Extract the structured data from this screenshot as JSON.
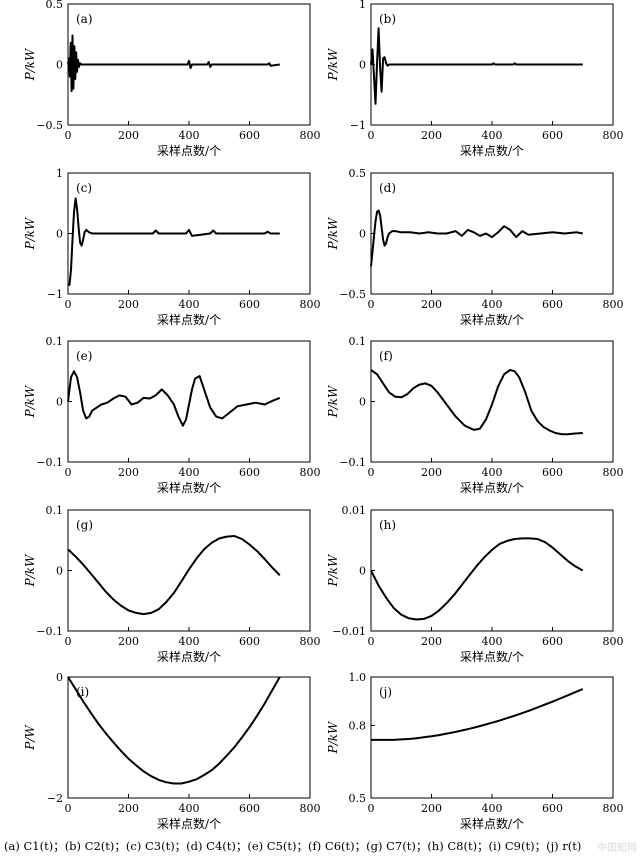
{
  "caption": "(a) C1(t)；(b) C2(t)；(c) C3(t)；(d) C4(t)；(e) C5(t)；(f) C6(t)；(g) C7(t)；(h) C8(t)；(i) C9(t)；(j) r(t)",
  "watermark": "中国知网",
  "chart_data": [
    {
      "type": "line",
      "label": "(a)",
      "xlabel": "采样点数/个",
      "ylabel": "P/kW",
      "xlim": [
        0,
        800
      ],
      "ylim": [
        -0.5,
        0.5
      ],
      "xticks": [
        0,
        200,
        400,
        600,
        800
      ],
      "yticks": [
        -0.5,
        0,
        0.5
      ],
      "ytick_labels": [
        "−0.5",
        "0",
        "0.5"
      ],
      "series": [
        {
          "x": [
            0,
            3,
            6,
            9,
            12,
            15,
            18,
            21,
            24,
            27,
            30,
            33,
            36,
            40,
            44,
            60,
            100,
            200,
            395,
            400,
            405,
            410,
            460,
            465,
            470,
            475,
            660,
            665,
            670,
            700
          ],
          "y": [
            0,
            0.05,
            -0.1,
            0.18,
            -0.22,
            0.24,
            -0.2,
            0.15,
            -0.12,
            0.1,
            -0.06,
            0.04,
            -0.02,
            0.01,
            0,
            0,
            0,
            0,
            0,
            0.03,
            -0.03,
            0,
            0,
            0.02,
            -0.02,
            0,
            0,
            0.01,
            -0.01,
            0
          ]
        }
      ]
    },
    {
      "type": "line",
      "label": "(b)",
      "xlabel": "采样点数/个",
      "ylabel": "P/kW",
      "xlim": [
        0,
        800
      ],
      "ylim": [
        -1,
        1
      ],
      "xticks": [
        0,
        200,
        400,
        600,
        800
      ],
      "yticks": [
        -1,
        0,
        1
      ],
      "ytick_labels": [
        "−1",
        "0",
        "1"
      ],
      "series": [
        {
          "x": [
            0,
            5,
            10,
            15,
            20,
            25,
            30,
            35,
            40,
            45,
            50,
            55,
            60,
            70,
            100,
            400,
            405,
            410,
            470,
            475,
            480,
            700
          ],
          "y": [
            0,
            0.25,
            -0.2,
            -0.65,
            0.05,
            0.6,
            -0.05,
            -0.45,
            0.1,
            0.12,
            0.02,
            -0.02,
            0,
            0,
            0,
            0,
            0.02,
            0,
            0,
            0.02,
            0,
            0
          ]
        }
      ]
    },
    {
      "type": "line",
      "label": "(c)",
      "xlabel": "采样点数/个",
      "ylabel": "P/kW",
      "xlim": [
        0,
        800
      ],
      "ylim": [
        -1,
        1
      ],
      "xticks": [
        0,
        200,
        400,
        600,
        800
      ],
      "yticks": [
        -1,
        0,
        1
      ],
      "ytick_labels": [
        "−1",
        "0",
        "1"
      ],
      "series": [
        {
          "x": [
            0,
            5,
            10,
            15,
            20,
            25,
            30,
            35,
            40,
            45,
            50,
            55,
            60,
            70,
            80,
            100,
            200,
            280,
            290,
            300,
            390,
            400,
            410,
            470,
            480,
            490,
            650,
            660,
            670,
            700
          ],
          "y": [
            -0.85,
            -0.85,
            -0.6,
            -0.1,
            0.35,
            0.58,
            0.4,
            0.1,
            -0.15,
            -0.2,
            -0.1,
            0.02,
            0.06,
            0.02,
            0,
            0,
            0,
            0,
            0.05,
            0,
            0,
            0.06,
            -0.04,
            0,
            0.05,
            0,
            0,
            0.03,
            0,
            0
          ]
        }
      ]
    },
    {
      "type": "line",
      "label": "(d)",
      "xlabel": "采样点数/个",
      "ylabel": "P/kW",
      "xlim": [
        0,
        800
      ],
      "ylim": [
        -0.5,
        0.5
      ],
      "xticks": [
        0,
        200,
        400,
        600,
        800
      ],
      "yticks": [
        -0.5,
        0,
        0.5
      ],
      "ytick_labels": [
        "−0.5",
        "0",
        "0.5"
      ],
      "series": [
        {
          "x": [
            0,
            5,
            10,
            15,
            20,
            25,
            30,
            35,
            40,
            45,
            50,
            55,
            60,
            70,
            80,
            100,
            130,
            160,
            190,
            220,
            250,
            280,
            300,
            320,
            340,
            360,
            380,
            400,
            420,
            440,
            460,
            480,
            500,
            520,
            560,
            600,
            640,
            680,
            700
          ],
          "y": [
            -0.27,
            -0.15,
            -0.02,
            0.1,
            0.18,
            0.19,
            0.15,
            0.05,
            -0.05,
            -0.1,
            -0.08,
            -0.03,
            0,
            0.02,
            0.02,
            0.01,
            0.01,
            0,
            0.01,
            0,
            0,
            0.02,
            -0.02,
            0.03,
            0.01,
            -0.02,
            0,
            -0.03,
            0.01,
            0.06,
            0.03,
            -0.03,
            0.02,
            -0.01,
            0,
            0.01,
            0,
            0.01,
            0
          ]
        }
      ]
    },
    {
      "type": "line",
      "label": "(e)",
      "xlabel": "采样点数/个",
      "ylabel": "P/kW",
      "xlim": [
        0,
        800
      ],
      "ylim": [
        -0.1,
        0.1
      ],
      "xticks": [
        0,
        200,
        400,
        600,
        800
      ],
      "yticks": [
        -0.1,
        0,
        0.1
      ],
      "ytick_labels": [
        "−0.1",
        "0",
        "0.1"
      ],
      "series": [
        {
          "x": [
            0,
            10,
            20,
            30,
            40,
            50,
            60,
            70,
            80,
            95,
            110,
            130,
            150,
            170,
            190,
            210,
            230,
            250,
            270,
            290,
            310,
            330,
            350,
            365,
            380,
            390,
            400,
            410,
            420,
            435,
            450,
            470,
            490,
            510,
            530,
            560,
            590,
            620,
            650,
            680,
            700
          ],
          "y": [
            0,
            0.04,
            0.05,
            0.04,
            0.015,
            -0.015,
            -0.028,
            -0.025,
            -0.015,
            -0.01,
            -0.005,
            -0.002,
            0.005,
            0.01,
            0.008,
            -0.005,
            -0.002,
            0.006,
            0.005,
            0.01,
            0.02,
            0.01,
            -0.005,
            -0.025,
            -0.04,
            -0.03,
            -0.005,
            0.02,
            0.038,
            0.042,
            0.02,
            -0.01,
            -0.025,
            -0.028,
            -0.02,
            -0.008,
            -0.005,
            -0.002,
            -0.005,
            0.002,
            0.006
          ]
        }
      ]
    },
    {
      "type": "line",
      "label": "(f)",
      "xlabel": "采样点数/个",
      "ylabel": "P/kW",
      "xlim": [
        0,
        800
      ],
      "ylim": [
        -0.1,
        0.1
      ],
      "xticks": [
        0,
        200,
        400,
        600,
        800
      ],
      "yticks": [
        -0.1,
        0,
        0.1
      ],
      "ytick_labels": [
        "−0.1",
        "0",
        "0.1"
      ],
      "series": [
        {
          "x": [
            0,
            20,
            40,
            60,
            80,
            100,
            120,
            140,
            160,
            180,
            200,
            220,
            250,
            280,
            310,
            340,
            360,
            380,
            400,
            420,
            440,
            460,
            475,
            490,
            510,
            530,
            550,
            570,
            590,
            610,
            630,
            650,
            670,
            700
          ],
          "y": [
            0.052,
            0.045,
            0.03,
            0.015,
            0.008,
            0.007,
            0.012,
            0.022,
            0.028,
            0.03,
            0.026,
            0.015,
            -0.005,
            -0.025,
            -0.04,
            -0.047,
            -0.045,
            -0.03,
            -0.005,
            0.025,
            0.045,
            0.052,
            0.05,
            0.04,
            0.015,
            -0.015,
            -0.032,
            -0.042,
            -0.048,
            -0.052,
            -0.054,
            -0.054,
            -0.053,
            -0.052
          ]
        }
      ]
    },
    {
      "type": "line",
      "label": "(g)",
      "xlabel": "采样点数/个",
      "ylabel": "P/kW",
      "xlim": [
        0,
        800
      ],
      "ylim": [
        -0.1,
        0.1
      ],
      "xticks": [
        0,
        200,
        400,
        600,
        800
      ],
      "yticks": [
        -0.1,
        0,
        0.1
      ],
      "ytick_labels": [
        "−0.1",
        "0",
        "0.1"
      ],
      "series": [
        {
          "x": [
            0,
            25,
            50,
            75,
            100,
            125,
            150,
            175,
            200,
            225,
            250,
            275,
            300,
            325,
            350,
            375,
            400,
            425,
            450,
            475,
            500,
            525,
            550,
            575,
            600,
            625,
            650,
            675,
            700
          ],
          "y": [
            0.035,
            0.023,
            0.01,
            -0.005,
            -0.02,
            -0.035,
            -0.048,
            -0.058,
            -0.066,
            -0.07,
            -0.072,
            -0.07,
            -0.064,
            -0.052,
            -0.037,
            -0.018,
            0.002,
            0.02,
            0.035,
            0.046,
            0.053,
            0.056,
            0.057,
            0.052,
            0.043,
            0.032,
            0.019,
            0.005,
            -0.008
          ]
        }
      ]
    },
    {
      "type": "line",
      "label": "(h)",
      "xlabel": "采样点数/个",
      "ylabel": "P/kW",
      "xlim": [
        0,
        800
      ],
      "ylim": [
        -0.01,
        0.01
      ],
      "xticks": [
        0,
        200,
        400,
        600,
        800
      ],
      "yticks": [
        -0.01,
        0,
        0.01
      ],
      "ytick_labels": [
        "−0.01",
        "0",
        "0.01"
      ],
      "series": [
        {
          "x": [
            0,
            25,
            50,
            75,
            100,
            125,
            150,
            175,
            200,
            225,
            250,
            275,
            300,
            325,
            350,
            375,
            400,
            425,
            450,
            475,
            500,
            525,
            550,
            575,
            600,
            625,
            650,
            675,
            700
          ],
          "y": [
            0,
            -0.0025,
            -0.0045,
            -0.0062,
            -0.0073,
            -0.0079,
            -0.0081,
            -0.008,
            -0.0075,
            -0.0066,
            -0.0054,
            -0.004,
            -0.0024,
            -0.0008,
            0.0008,
            0.0022,
            0.0034,
            0.0044,
            0.0049,
            0.0052,
            0.0053,
            0.0053,
            0.0052,
            0.0047,
            0.0038,
            0.0027,
            0.0016,
            0.0007,
            0
          ]
        }
      ]
    },
    {
      "type": "line",
      "label": "(i)",
      "xlabel": "采样点数/个",
      "ylabel": "P/W",
      "xlim": [
        0,
        800
      ],
      "ylim": [
        -2,
        0
      ],
      "xticks": [
        0,
        200,
        400,
        600,
        800
      ],
      "yticks": [
        -2,
        0
      ],
      "ytick_labels": [
        "−2",
        "0"
      ],
      "series": [
        {
          "x": [
            0,
            25,
            50,
            75,
            100,
            125,
            150,
            175,
            200,
            225,
            250,
            275,
            300,
            325,
            350,
            375,
            400,
            425,
            450,
            475,
            500,
            525,
            550,
            575,
            600,
            625,
            650,
            675,
            700
          ],
          "y": [
            0,
            -0.2,
            -0.4,
            -0.59,
            -0.77,
            -0.93,
            -1.08,
            -1.22,
            -1.35,
            -1.46,
            -1.56,
            -1.64,
            -1.7,
            -1.74,
            -1.76,
            -1.76,
            -1.73,
            -1.69,
            -1.62,
            -1.54,
            -1.43,
            -1.3,
            -1.16,
            -1.0,
            -0.83,
            -0.64,
            -0.44,
            -0.22,
            0
          ]
        }
      ]
    },
    {
      "type": "line",
      "label": "(j)",
      "xlabel": "采样点数/个",
      "ylabel": "P/kW",
      "xlim": [
        0,
        800
      ],
      "ylim": [
        0.5,
        1.0
      ],
      "xticks": [
        0,
        200,
        400,
        600,
        800
      ],
      "yticks": [
        0.5,
        0.8,
        1.0
      ],
      "ytick_labels": [
        "0.5",
        "0.8",
        "1.0"
      ],
      "series": [
        {
          "x": [
            0,
            25,
            50,
            75,
            100,
            125,
            150,
            175,
            200,
            225,
            250,
            275,
            300,
            325,
            350,
            375,
            400,
            425,
            450,
            475,
            500,
            525,
            550,
            575,
            600,
            625,
            650,
            675,
            700
          ],
          "y": [
            0.74,
            0.74,
            0.74,
            0.74,
            0.742,
            0.744,
            0.747,
            0.751,
            0.755,
            0.76,
            0.766,
            0.772,
            0.779,
            0.786,
            0.794,
            0.802,
            0.811,
            0.82,
            0.83,
            0.84,
            0.851,
            0.862,
            0.874,
            0.886,
            0.898,
            0.911,
            0.924,
            0.937,
            0.95
          ]
        }
      ]
    }
  ]
}
